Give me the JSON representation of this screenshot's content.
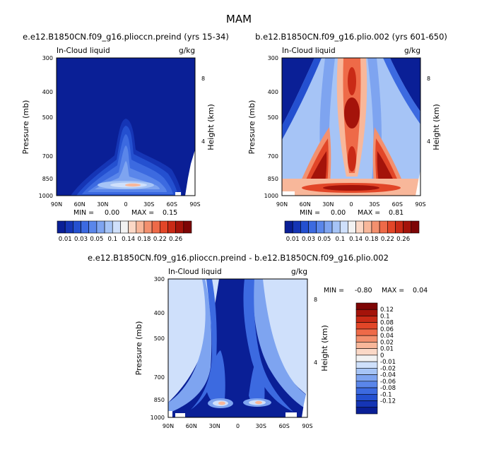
{
  "figure_title": "MAM",
  "colors": {
    "blues": [
      "#0a1f96",
      "#1535b5",
      "#2450d0",
      "#3c6ae0",
      "#5a86ea",
      "#7ea4f0",
      "#a6c4f6",
      "#cfe0fb"
    ],
    "neutral": "#f2f2f2",
    "reds": [
      "#fbd8c6",
      "#f8b79a",
      "#f3906e",
      "#ee6a48",
      "#e24628",
      "#c92a16",
      "#a4130a",
      "#7d0505"
    ]
  },
  "chart_data": [
    {
      "id": "top-left",
      "type": "heatmap",
      "title": "e.e12.B1850CN.f09_g16.plioccn.preind (yrs 15-34)",
      "left_label": "In-Cloud liquid",
      "right_label": "g/kg",
      "ylabel": "Pressure (mb)",
      "y2label": "Height (km)",
      "x_ticks": [
        "90N",
        "60N",
        "30N",
        "0",
        "30S",
        "60S",
        "90S"
      ],
      "y_ticks": [
        "300",
        "400",
        "500",
        "700",
        "850",
        "1000"
      ],
      "y2_ticks": [
        "8",
        "4"
      ],
      "stats": {
        "min_label": "MIN =",
        "min_value": "0.00",
        "max_label": "MAX =",
        "max_value": "0.15"
      },
      "colorbar_labels": [
        "0.01",
        "0.03",
        "0.05",
        "0.1",
        "0.14",
        "0.18",
        "0.22",
        "0.26"
      ]
    },
    {
      "id": "top-right",
      "type": "heatmap",
      "title": "b.e12.B1850CN.f09_g16.plio.002 (yrs 601-650)",
      "left_label": "In-Cloud liquid",
      "right_label": "g/kg",
      "ylabel": "Pressure (mb)",
      "y2label": "Height (km)",
      "x_ticks": [
        "90N",
        "60N",
        "30N",
        "0",
        "30S",
        "60S",
        "90S"
      ],
      "y_ticks": [
        "300",
        "400",
        "500",
        "700",
        "850",
        "1000"
      ],
      "y2_ticks": [
        "8",
        "4"
      ],
      "stats": {
        "min_label": "MIN =",
        "min_value": "0.00",
        "max_label": "MAX =",
        "max_value": "0.81"
      },
      "colorbar_labels": [
        "0.01",
        "0.03",
        "0.05",
        "0.1",
        "0.14",
        "0.18",
        "0.22",
        "0.26"
      ]
    },
    {
      "id": "bottom",
      "type": "heatmap",
      "title": "e.e12.B1850CN.f09_g16.plioccn.preind - b.e12.B1850CN.f09_g16.plio.002",
      "left_label": "In-Cloud liquid",
      "right_label": "g/kg",
      "ylabel": "Pressure (mb)",
      "y2label": "Height (km)",
      "x_ticks": [
        "90N",
        "60N",
        "30N",
        "0",
        "30S",
        "60S",
        "90S"
      ],
      "y_ticks": [
        "300",
        "400",
        "500",
        "700",
        "850",
        "1000"
      ],
      "y2_ticks": [
        "8",
        "4"
      ],
      "stats": {
        "min_label": "MIN =",
        "min_value": "-0.80",
        "max_label": "MAX =",
        "max_value": "0.04"
      },
      "colorbar_labels": [
        "0.12",
        "0.1",
        "0.08",
        "0.06",
        "0.04",
        "0.02",
        "0.01",
        "0",
        "-0.01",
        "-0.02",
        "-0.04",
        "-0.06",
        "-0.08",
        "-0.1",
        "-0.12"
      ]
    }
  ]
}
